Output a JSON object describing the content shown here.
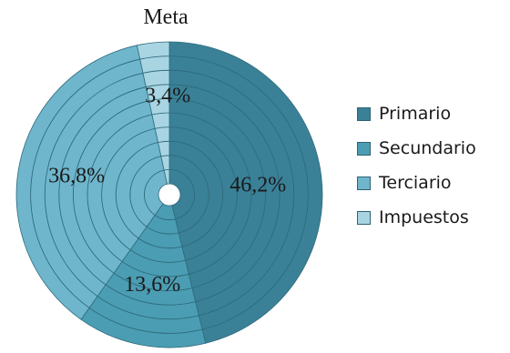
{
  "chart_data": {
    "type": "pie",
    "title": "Meta",
    "categories": [
      "Primario",
      "Secundario",
      "Terciario",
      "Impuestos"
    ],
    "values": [
      46.2,
      13.6,
      36.8,
      3.4
    ],
    "value_labels": [
      "46,2%",
      "13,6%",
      "36,8%",
      "3,4%"
    ],
    "colors": [
      "#3a8197",
      "#4b9db3",
      "#6fb6cc",
      "#a9d5e3"
    ],
    "rings": 10,
    "legend_position": "right"
  }
}
